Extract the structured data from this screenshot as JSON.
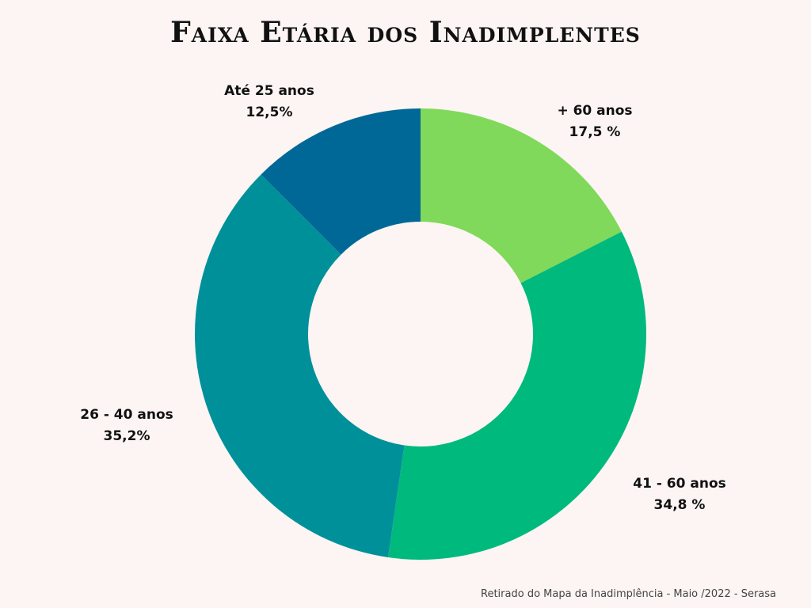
{
  "chart_data": {
    "type": "pie",
    "variant": "donut",
    "title": "Faixa Etária dos Inadimplentes",
    "slices": [
      {
        "label": "+ 60 anos",
        "value": 17.5,
        "value_label": "17,5 %",
        "color": "#80d95a"
      },
      {
        "label": "41 - 60 anos",
        "value": 34.8,
        "value_label": "34,8 %",
        "color": "#00b97d"
      },
      {
        "label": "26 - 40 anos",
        "value": 35.2,
        "value_label": "35,2%",
        "color": "#00909a"
      },
      {
        "label": "Até 25 anos",
        "value": 12.5,
        "value_label": "12,5%",
        "color": "#006897"
      }
    ],
    "legend": "none"
  },
  "source_note": "Retirado do Mapa da Inadimplência - Maio /2022 - Serasa"
}
